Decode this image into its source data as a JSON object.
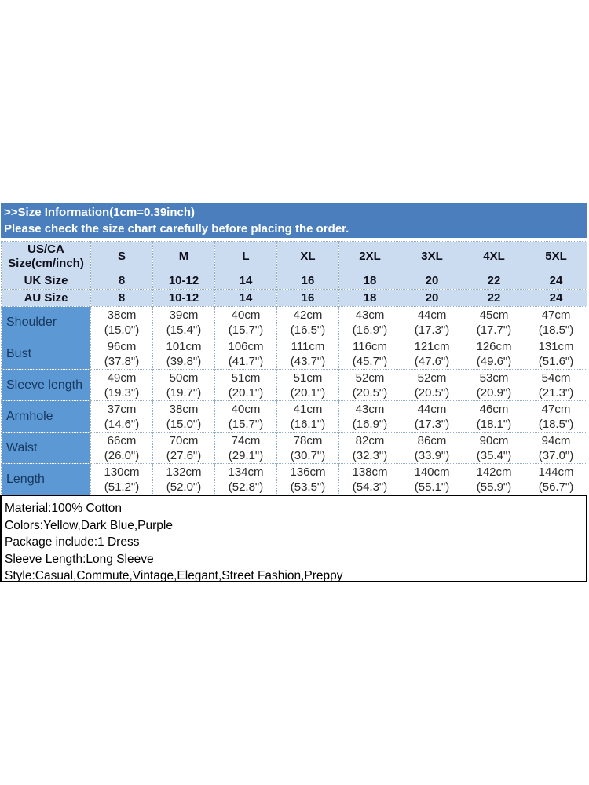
{
  "banner": {
    "title": ">>Size Information(1cm=0.39inch)",
    "subtitle": "Please check the size chart carefully before placing the order."
  },
  "table": {
    "corner": {
      "line1": "US/CA",
      "line2": "Size(cm/inch)"
    },
    "sizes": [
      "S",
      "M",
      "L",
      "XL",
      "2XL",
      "3XL",
      "4XL",
      "5XL"
    ],
    "size_rows": [
      {
        "label": "UK Size",
        "values": [
          "8",
          "10-12",
          "14",
          "16",
          "18",
          "20",
          "22",
          "24"
        ]
      },
      {
        "label": "AU Size",
        "values": [
          "8",
          "10-12",
          "14",
          "16",
          "18",
          "20",
          "22",
          "24"
        ]
      }
    ],
    "measurements": [
      {
        "label": "Shoulder",
        "cm": [
          "38cm",
          "39cm",
          "40cm",
          "42cm",
          "43cm",
          "44cm",
          "45cm",
          "47cm"
        ],
        "inch": [
          "(15.0\")",
          "(15.4\")",
          "(15.7\")",
          "(16.5\")",
          "(16.9\")",
          "(17.3\")",
          "(17.7\")",
          "(18.5\")"
        ]
      },
      {
        "label": "Bust",
        "cm": [
          "96cm",
          "101cm",
          "106cm",
          "111cm",
          "116cm",
          "121cm",
          "126cm",
          "131cm"
        ],
        "inch": [
          "(37.8\")",
          "(39.8\")",
          "(41.7\")",
          "(43.7\")",
          "(45.7\")",
          "(47.6\")",
          "(49.6\")",
          "(51.6\")"
        ]
      },
      {
        "label": "Sleeve length",
        "cm": [
          "49cm",
          "50cm",
          "51cm",
          "51cm",
          "52cm",
          "52cm",
          "53cm",
          "54cm"
        ],
        "inch": [
          "(19.3\")",
          "(19.7\")",
          "(20.1\")",
          "(20.1\")",
          "(20.5\")",
          "(20.5\")",
          "(20.9\")",
          "(21.3\")"
        ]
      },
      {
        "label": "Armhole",
        "cm": [
          "37cm",
          "38cm",
          "40cm",
          "41cm",
          "43cm",
          "44cm",
          "46cm",
          "47cm"
        ],
        "inch": [
          "(14.6\")",
          "(15.0\")",
          "(15.7\")",
          "(16.1\")",
          "(16.9\")",
          "(17.3\")",
          "(18.1\")",
          "(18.5\")"
        ]
      },
      {
        "label": "Waist",
        "cm": [
          "66cm",
          "70cm",
          "74cm",
          "78cm",
          "82cm",
          "86cm",
          "90cm",
          "94cm"
        ],
        "inch": [
          "(26.0\")",
          "(27.6\")",
          "(29.1\")",
          "(30.7\")",
          "(32.3\")",
          "(33.9\")",
          "(35.4\")",
          "(37.0\")"
        ]
      },
      {
        "label": "Length",
        "cm": [
          "130cm",
          "132cm",
          "134cm",
          "136cm",
          "138cm",
          "140cm",
          "142cm",
          "144cm"
        ],
        "inch": [
          "(51.2\")",
          "(52.0\")",
          "(52.8\")",
          "(53.5\")",
          "(54.3\")",
          "(55.1\")",
          "(55.9\")",
          "(56.7\")"
        ]
      }
    ]
  },
  "info": {
    "lines": [
      "Material:100% Cotton",
      "Colors:Yellow,Dark Blue,Purple",
      "Package include:1 Dress",
      "Sleeve Length:Long Sleeve",
      "Style:Casual,Commute,Vintage,Elegant,Street Fashion,Preppy"
    ]
  },
  "colors": {
    "banner_bg": "#4a7ebc",
    "header_row_bg": "#cbdcf0",
    "label_column_bg": "#5c99d4",
    "label_text": "#17375e",
    "dotted_border": "#96adc8"
  }
}
